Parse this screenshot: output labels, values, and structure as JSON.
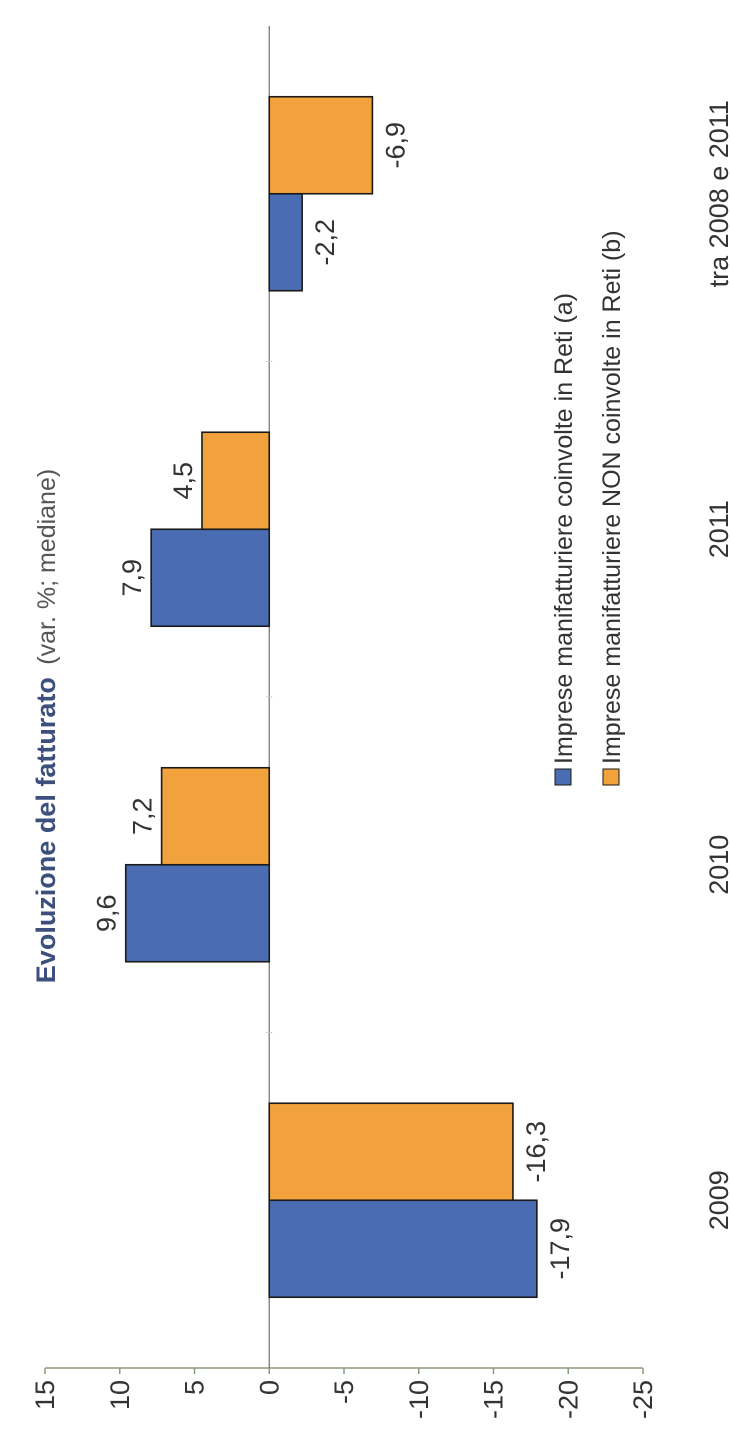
{
  "chart_data": {
    "type": "bar",
    "orientation": "rotated-90",
    "title": "Evoluzione del fatturato",
    "subtitle": "(var. %; mediane)",
    "categories": [
      "2009",
      "2010",
      "2011",
      "tra 2008 e 2011"
    ],
    "series": [
      {
        "name": "Imprese manifatturiere coinvolte in Reti (a)",
        "color": "#4a6cb3",
        "values": [
          -17.9,
          9.6,
          7.9,
          -2.2
        ]
      },
      {
        "name": "Imprese manifatturiere NON coinvolte in Reti (b)",
        "color": "#f2a23c",
        "values": [
          -16.3,
          7.2,
          4.5,
          -6.9
        ]
      }
    ],
    "value_labels": [
      [
        "-17,9",
        "9,6",
        "7,9",
        "-2,2"
      ],
      [
        "-16,3",
        "7,2",
        "4,5",
        "-6,9"
      ]
    ],
    "ylim": [
      -25,
      15
    ],
    "yticks": [
      "15",
      "10",
      "5",
      "0",
      "-5",
      "-10",
      "-15",
      "-20",
      "-25"
    ],
    "ytick_values": [
      15,
      10,
      5,
      0,
      -5,
      -10,
      -15,
      -20,
      -25
    ],
    "grid": false,
    "legend_position": "bottom"
  }
}
